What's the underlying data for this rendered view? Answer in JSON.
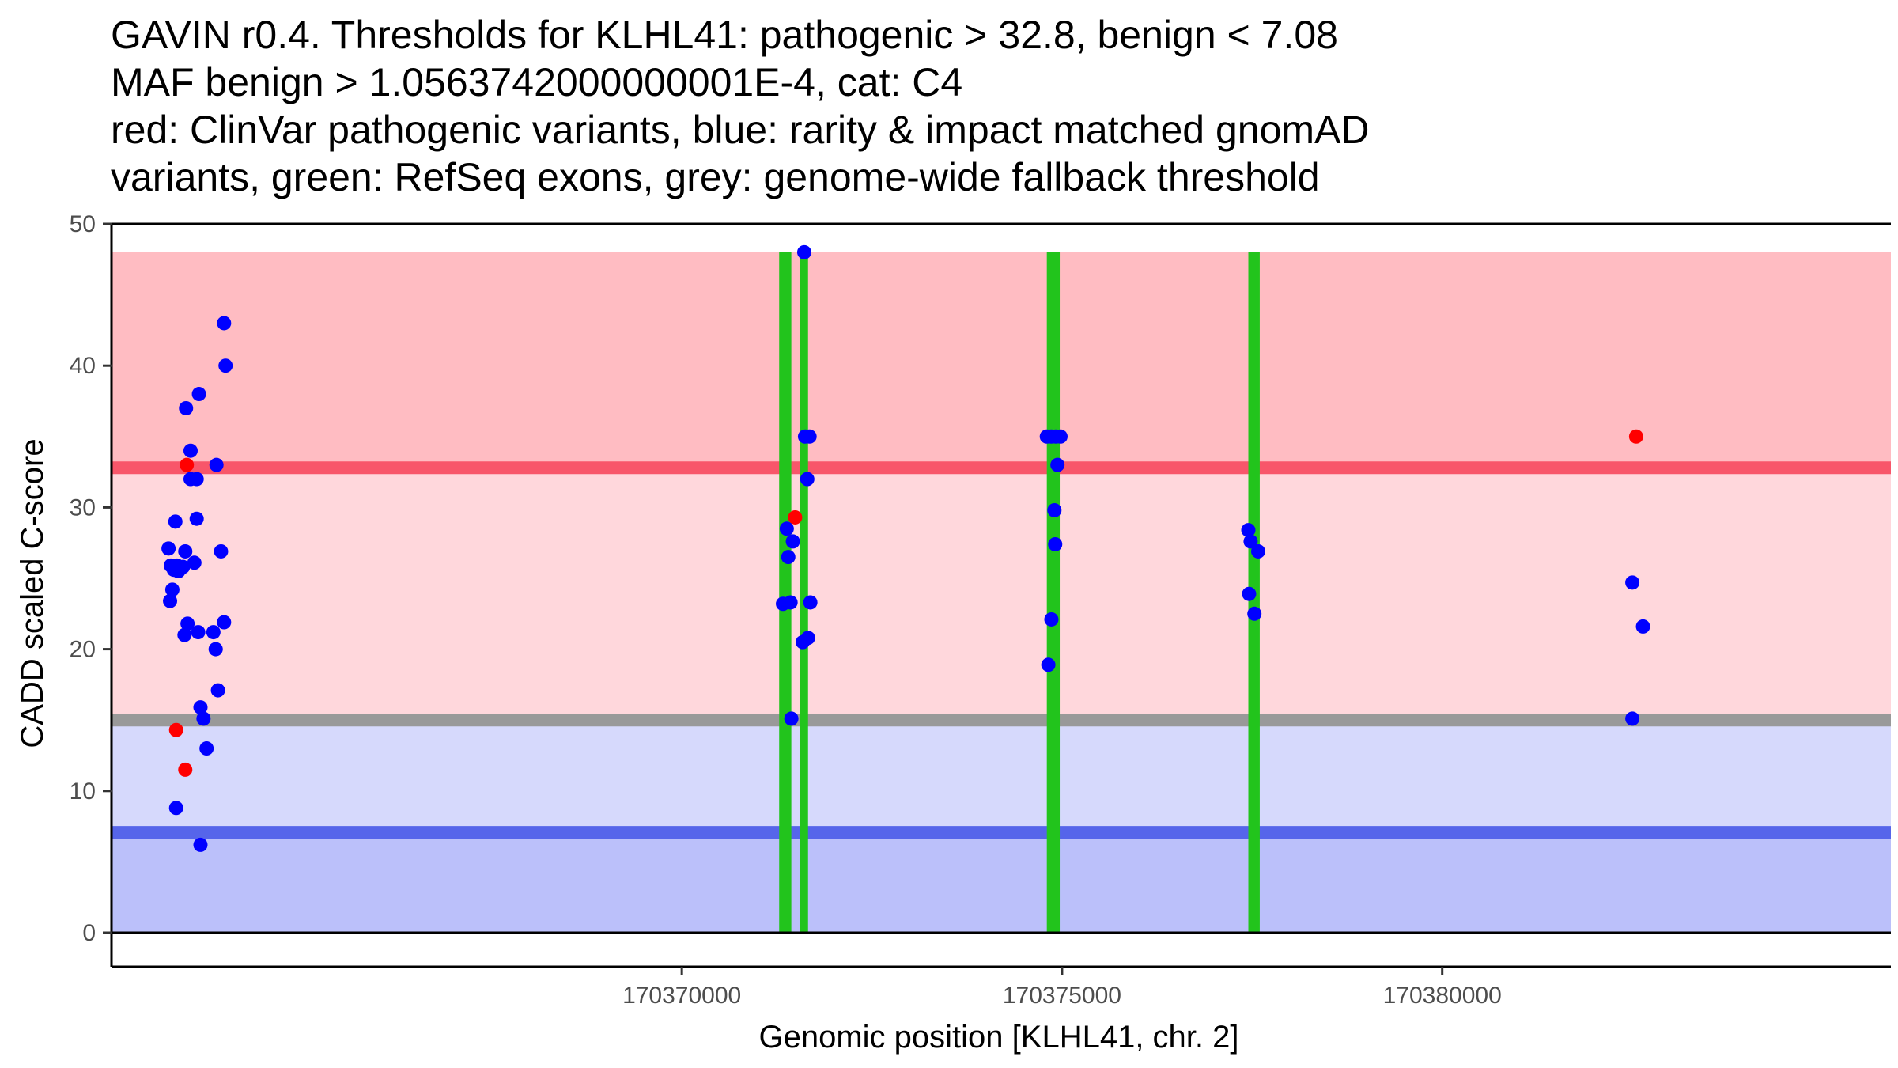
{
  "chart_data": {
    "type": "scatter",
    "title_lines": [
      "GAVIN r0.4. Thresholds for KLHL41: pathogenic > 32.8, benign < 7.08",
      "MAF benign > 1.0563742000000001E-4, cat: C4",
      "red: ClinVar pathogenic variants, blue: rarity & impact matched gnomAD",
      "variants, green: RefSeq exons, grey: genome-wide fallback threshold"
    ],
    "xlabel": "Genomic position [KLHL41, chr. 2]",
    "ylabel": "CADD scaled C-score",
    "xlim": [
      170362500,
      170385900
    ],
    "ylim": [
      -2.4,
      50
    ],
    "x_ticks": [
      170370000,
      170375000,
      170380000
    ],
    "y_ticks": [
      0,
      10,
      20,
      30,
      40,
      50
    ],
    "colors": {
      "pathogenic_band": "#ffbcc2",
      "mid_band": "#ffd7dc",
      "lower_band": "#d6d9fc",
      "benign_band": "#bbc0fa",
      "pathogenic_line": "#f8566a",
      "fallback_line": "#999999",
      "benign_line": "#5665ea",
      "exon": "#22c41c",
      "clinvar": "#ff0000",
      "gnomad": "#0000ff"
    },
    "bands": [
      {
        "name": "pathogenic-region",
        "y0": 32.8,
        "y1": 48,
        "color": "#ffbcc2"
      },
      {
        "name": "intermediate-region",
        "y0": 15,
        "y1": 32.8,
        "color": "#ffd7dc"
      },
      {
        "name": "lower-intermediate-region",
        "y0": 7.08,
        "y1": 15,
        "color": "#d6d9fc"
      },
      {
        "name": "benign-region",
        "y0": 0,
        "y1": 7.08,
        "color": "#bbc0fa"
      }
    ],
    "thresholds": [
      {
        "name": "pathogenic-threshold",
        "y": 32.8,
        "color": "#f8566a"
      },
      {
        "name": "fallback-threshold",
        "y": 15,
        "color": "#999999"
      },
      {
        "name": "benign-threshold",
        "y": 7.08,
        "color": "#5665ea"
      }
    ],
    "exons": [
      {
        "start": 170371280,
        "end": 170371440
      },
      {
        "start": 170371550,
        "end": 170371660
      },
      {
        "start": 170374800,
        "end": 170374970
      },
      {
        "start": 170377450,
        "end": 170377600
      }
    ],
    "clinvar_points": [
      {
        "x": 170363490,
        "y": 33.0
      },
      {
        "x": 170363350,
        "y": 14.3
      },
      {
        "x": 170363470,
        "y": 11.5
      },
      {
        "x": 170371490,
        "y": 29.3
      },
      {
        "x": 170382550,
        "y": 35.0
      }
    ],
    "gnomad_points": [
      {
        "x": 170363980,
        "y": 43.0
      },
      {
        "x": 170364000,
        "y": 40.0
      },
      {
        "x": 170363650,
        "y": 38.0
      },
      {
        "x": 170363480,
        "y": 37.0
      },
      {
        "x": 170363540,
        "y": 34.0
      },
      {
        "x": 170363880,
        "y": 33.0
      },
      {
        "x": 170363540,
        "y": 32.0
      },
      {
        "x": 170363620,
        "y": 32.0
      },
      {
        "x": 170363620,
        "y": 29.2
      },
      {
        "x": 170363340,
        "y": 29.0
      },
      {
        "x": 170363250,
        "y": 27.1
      },
      {
        "x": 170363470,
        "y": 26.9
      },
      {
        "x": 170363940,
        "y": 26.9
      },
      {
        "x": 170363590,
        "y": 26.1
      },
      {
        "x": 170363280,
        "y": 25.9
      },
      {
        "x": 170363360,
        "y": 25.9
      },
      {
        "x": 170363440,
        "y": 25.8
      },
      {
        "x": 170363320,
        "y": 25.6
      },
      {
        "x": 170363380,
        "y": 25.5
      },
      {
        "x": 170363300,
        "y": 24.2
      },
      {
        "x": 170363270,
        "y": 23.4
      },
      {
        "x": 170363500,
        "y": 21.8
      },
      {
        "x": 170363980,
        "y": 21.9
      },
      {
        "x": 170363460,
        "y": 21.0
      },
      {
        "x": 170363640,
        "y": 21.2
      },
      {
        "x": 170363840,
        "y": 21.2
      },
      {
        "x": 170363870,
        "y": 20.0
      },
      {
        "x": 170363900,
        "y": 17.1
      },
      {
        "x": 170363670,
        "y": 15.9
      },
      {
        "x": 170363710,
        "y": 15.1
      },
      {
        "x": 170363750,
        "y": 13.0
      },
      {
        "x": 170363350,
        "y": 8.8
      },
      {
        "x": 170363670,
        "y": 6.2
      },
      {
        "x": 170371610,
        "y": 48.0
      },
      {
        "x": 170371620,
        "y": 35.0
      },
      {
        "x": 170371680,
        "y": 35.0
      },
      {
        "x": 170371650,
        "y": 32.0
      },
      {
        "x": 170371380,
        "y": 28.5
      },
      {
        "x": 170371460,
        "y": 27.6
      },
      {
        "x": 170371400,
        "y": 26.5
      },
      {
        "x": 170371330,
        "y": 23.2
      },
      {
        "x": 170371430,
        "y": 23.3
      },
      {
        "x": 170371690,
        "y": 23.3
      },
      {
        "x": 170371660,
        "y": 20.8
      },
      {
        "x": 170371590,
        "y": 20.5
      },
      {
        "x": 170371440,
        "y": 15.1
      },
      {
        "x": 170374800,
        "y": 35.0
      },
      {
        "x": 170374860,
        "y": 35.0
      },
      {
        "x": 170374920,
        "y": 35.0
      },
      {
        "x": 170374980,
        "y": 35.0
      },
      {
        "x": 170374940,
        "y": 33.0
      },
      {
        "x": 170374900,
        "y": 29.8
      },
      {
        "x": 170374910,
        "y": 27.4
      },
      {
        "x": 170374860,
        "y": 22.1
      },
      {
        "x": 170374820,
        "y": 18.9
      },
      {
        "x": 170377450,
        "y": 28.4
      },
      {
        "x": 170377480,
        "y": 27.6
      },
      {
        "x": 170377580,
        "y": 26.9
      },
      {
        "x": 170377460,
        "y": 23.9
      },
      {
        "x": 170377530,
        "y": 22.5
      },
      {
        "x": 170382500,
        "y": 24.7
      },
      {
        "x": 170382640,
        "y": 21.6
      },
      {
        "x": 170382500,
        "y": 15.1
      }
    ]
  }
}
